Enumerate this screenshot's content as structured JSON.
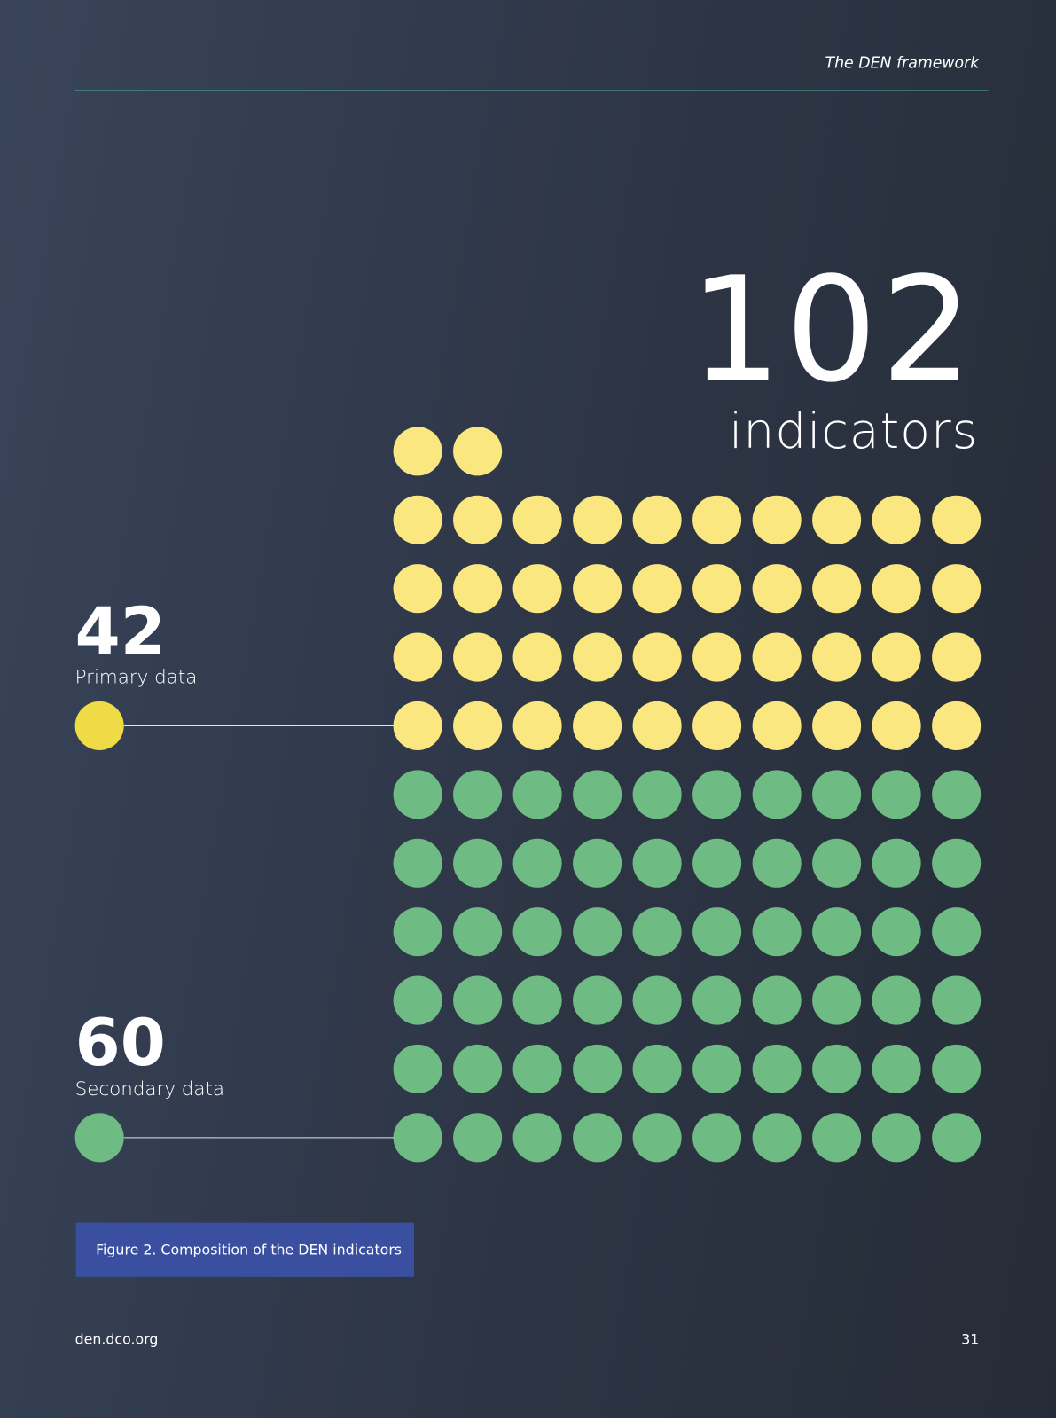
{
  "header": {
    "title": "The DEN framework"
  },
  "total": {
    "value": 102,
    "label": "indicators"
  },
  "groups": [
    {
      "value": 42,
      "label": "Primary data",
      "color": "#fae77f",
      "marker_color": "#eedb45"
    },
    {
      "value": 60,
      "label": "Secondary data",
      "color": "#6fbb84",
      "marker_color": "#6fbb84"
    }
  ],
  "caption": "Figure 2. Composition of the DEN indicators",
  "footer": {
    "site": "den.dco.org",
    "page": "31"
  }
}
